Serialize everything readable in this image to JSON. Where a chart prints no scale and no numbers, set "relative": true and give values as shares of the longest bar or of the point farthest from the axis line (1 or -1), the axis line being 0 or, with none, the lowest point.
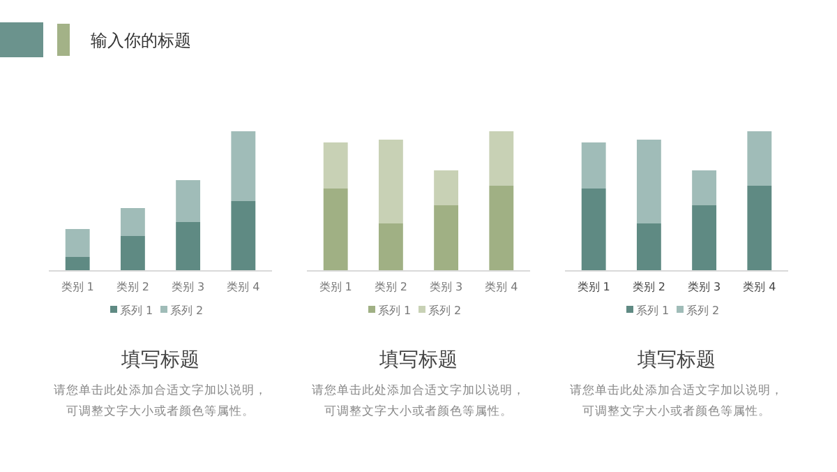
{
  "chart_data": [
    {
      "type": "bar",
      "stacked": true,
      "relative": true,
      "title": "填写标题",
      "categories": [
        "类别 1",
        "类别 2",
        "类别 3",
        "类别 4"
      ],
      "legend": "bottom",
      "annotations": [
        "输入你的标题",
        "请您单击此处添加合适文字加以说明，",
        "可调整文字大小或者颜色等属性。"
      ],
      "series": [
        {
          "name": "系列 1",
          "color": "#5f8a83",
          "values": [
            0.1,
            0.25,
            0.35,
            0.5
          ]
        },
        {
          "name": "系列 2",
          "color": "#a0bcb8",
          "values": [
            0.2,
            0.2,
            0.3,
            0.5
          ]
        }
      ]
    },
    {
      "type": "bar",
      "stacked": true,
      "relative": true,
      "title": "填写标题",
      "categories": [
        "类别 1",
        "类别 2",
        "类别 3",
        "类别 4"
      ],
      "legend": "bottom",
      "annotations": [
        "请您单击此处添加合适文字加以说明，",
        "可调整文字大小或者颜色等属性。"
      ],
      "series": [
        {
          "name": "系列 1",
          "color": "#a0b084",
          "values": [
            0.59,
            0.34,
            0.47,
            0.61
          ]
        },
        {
          "name": "系列 2",
          "color": "#c8d1b5",
          "values": [
            0.33,
            0.6,
            0.25,
            0.39
          ]
        }
      ]
    },
    {
      "type": "bar",
      "stacked": true,
      "relative": true,
      "title": "填写标题",
      "categories": [
        "类别 1",
        "类别 2",
        "类别 3",
        "类别 4"
      ],
      "legend": "bottom",
      "annotations": [
        "请您单击此处添加合适文字加以说明，",
        "可调整文字大小或者颜色等属性。"
      ],
      "series": [
        {
          "name": "系列 1",
          "color": "#5f8a83",
          "values": [
            0.59,
            0.34,
            0.47,
            0.61
          ]
        },
        {
          "name": "系列 2",
          "color": "#a0bcb8",
          "values": [
            0.33,
            0.6,
            0.25,
            0.39
          ]
        }
      ]
    }
  ]
}
